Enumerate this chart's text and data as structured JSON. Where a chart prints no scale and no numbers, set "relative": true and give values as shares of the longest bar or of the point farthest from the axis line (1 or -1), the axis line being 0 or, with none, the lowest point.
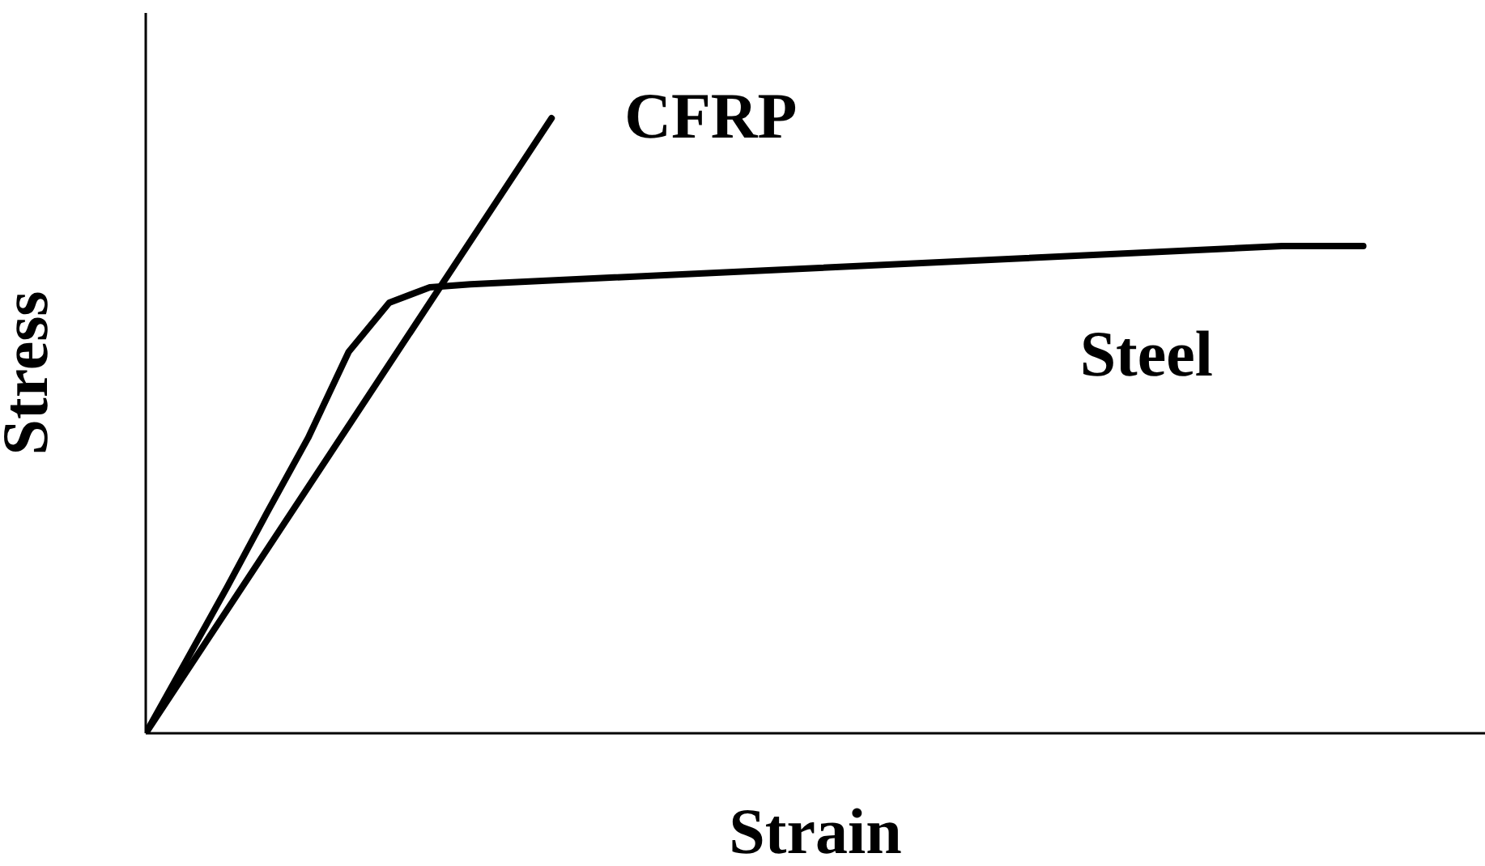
{
  "chart_data": {
    "type": "line",
    "relative": true,
    "xlabel": "Strain",
    "ylabel": "Stress",
    "legend": false,
    "grid": false,
    "marker": "none",
    "line_style": "solid",
    "categories": [
      null,
      null,
      null,
      null,
      null,
      null,
      null,
      null,
      null,
      null,
      null,
      null,
      null,
      null,
      null,
      null,
      null,
      null,
      null,
      null,
      null,
      null,
      null,
      null,
      null,
      null,
      null,
      null,
      null,
      null,
      null
    ],
    "series": [
      {
        "name": "CFRP",
        "color": "#000000",
        "values": [
          0,
          null,
          null,
          null,
          null,
          null,
          null,
          null,
          null,
          null,
          1,
          null,
          null,
          null,
          null,
          null,
          null,
          null,
          null,
          null,
          null,
          null,
          null,
          null,
          null,
          null,
          null,
          null,
          null,
          null,
          null
        ]
      },
      {
        "name": "Steel",
        "color": "#000000",
        "values": [
          0,
          0.118,
          0.237,
          0.36,
          0.48,
          0.62,
          0.7,
          0.725,
          0.73,
          null,
          null,
          null,
          null,
          null,
          null,
          null,
          null,
          null,
          null,
          null,
          null,
          null,
          null,
          null,
          null,
          null,
          null,
          null,
          0.792,
          null,
          0.792
        ]
      }
    ]
  }
}
